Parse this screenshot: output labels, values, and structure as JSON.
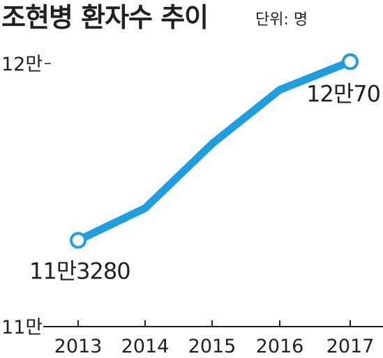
{
  "chart_data": {
    "type": "line",
    "title": "조현병 환자수 추이",
    "unit_note": "단위: 명",
    "x": [
      "2013",
      "2014",
      "2015",
      "2016",
      "2017"
    ],
    "series": [
      {
        "values": [
          113280,
          114500,
          116950,
          119000,
          120070
        ]
      }
    ],
    "ylim": [
      110000,
      120000
    ],
    "y_ticks": [
      {
        "value": 120000,
        "label": "12만"
      },
      {
        "value": 110000,
        "label": "11만"
      }
    ],
    "annotations": [
      {
        "index": 0,
        "text": "11만3280"
      },
      {
        "index": 4,
        "text": "12만70"
      }
    ],
    "line_color": "#1e9ee0",
    "grid": false,
    "legend": "none"
  }
}
